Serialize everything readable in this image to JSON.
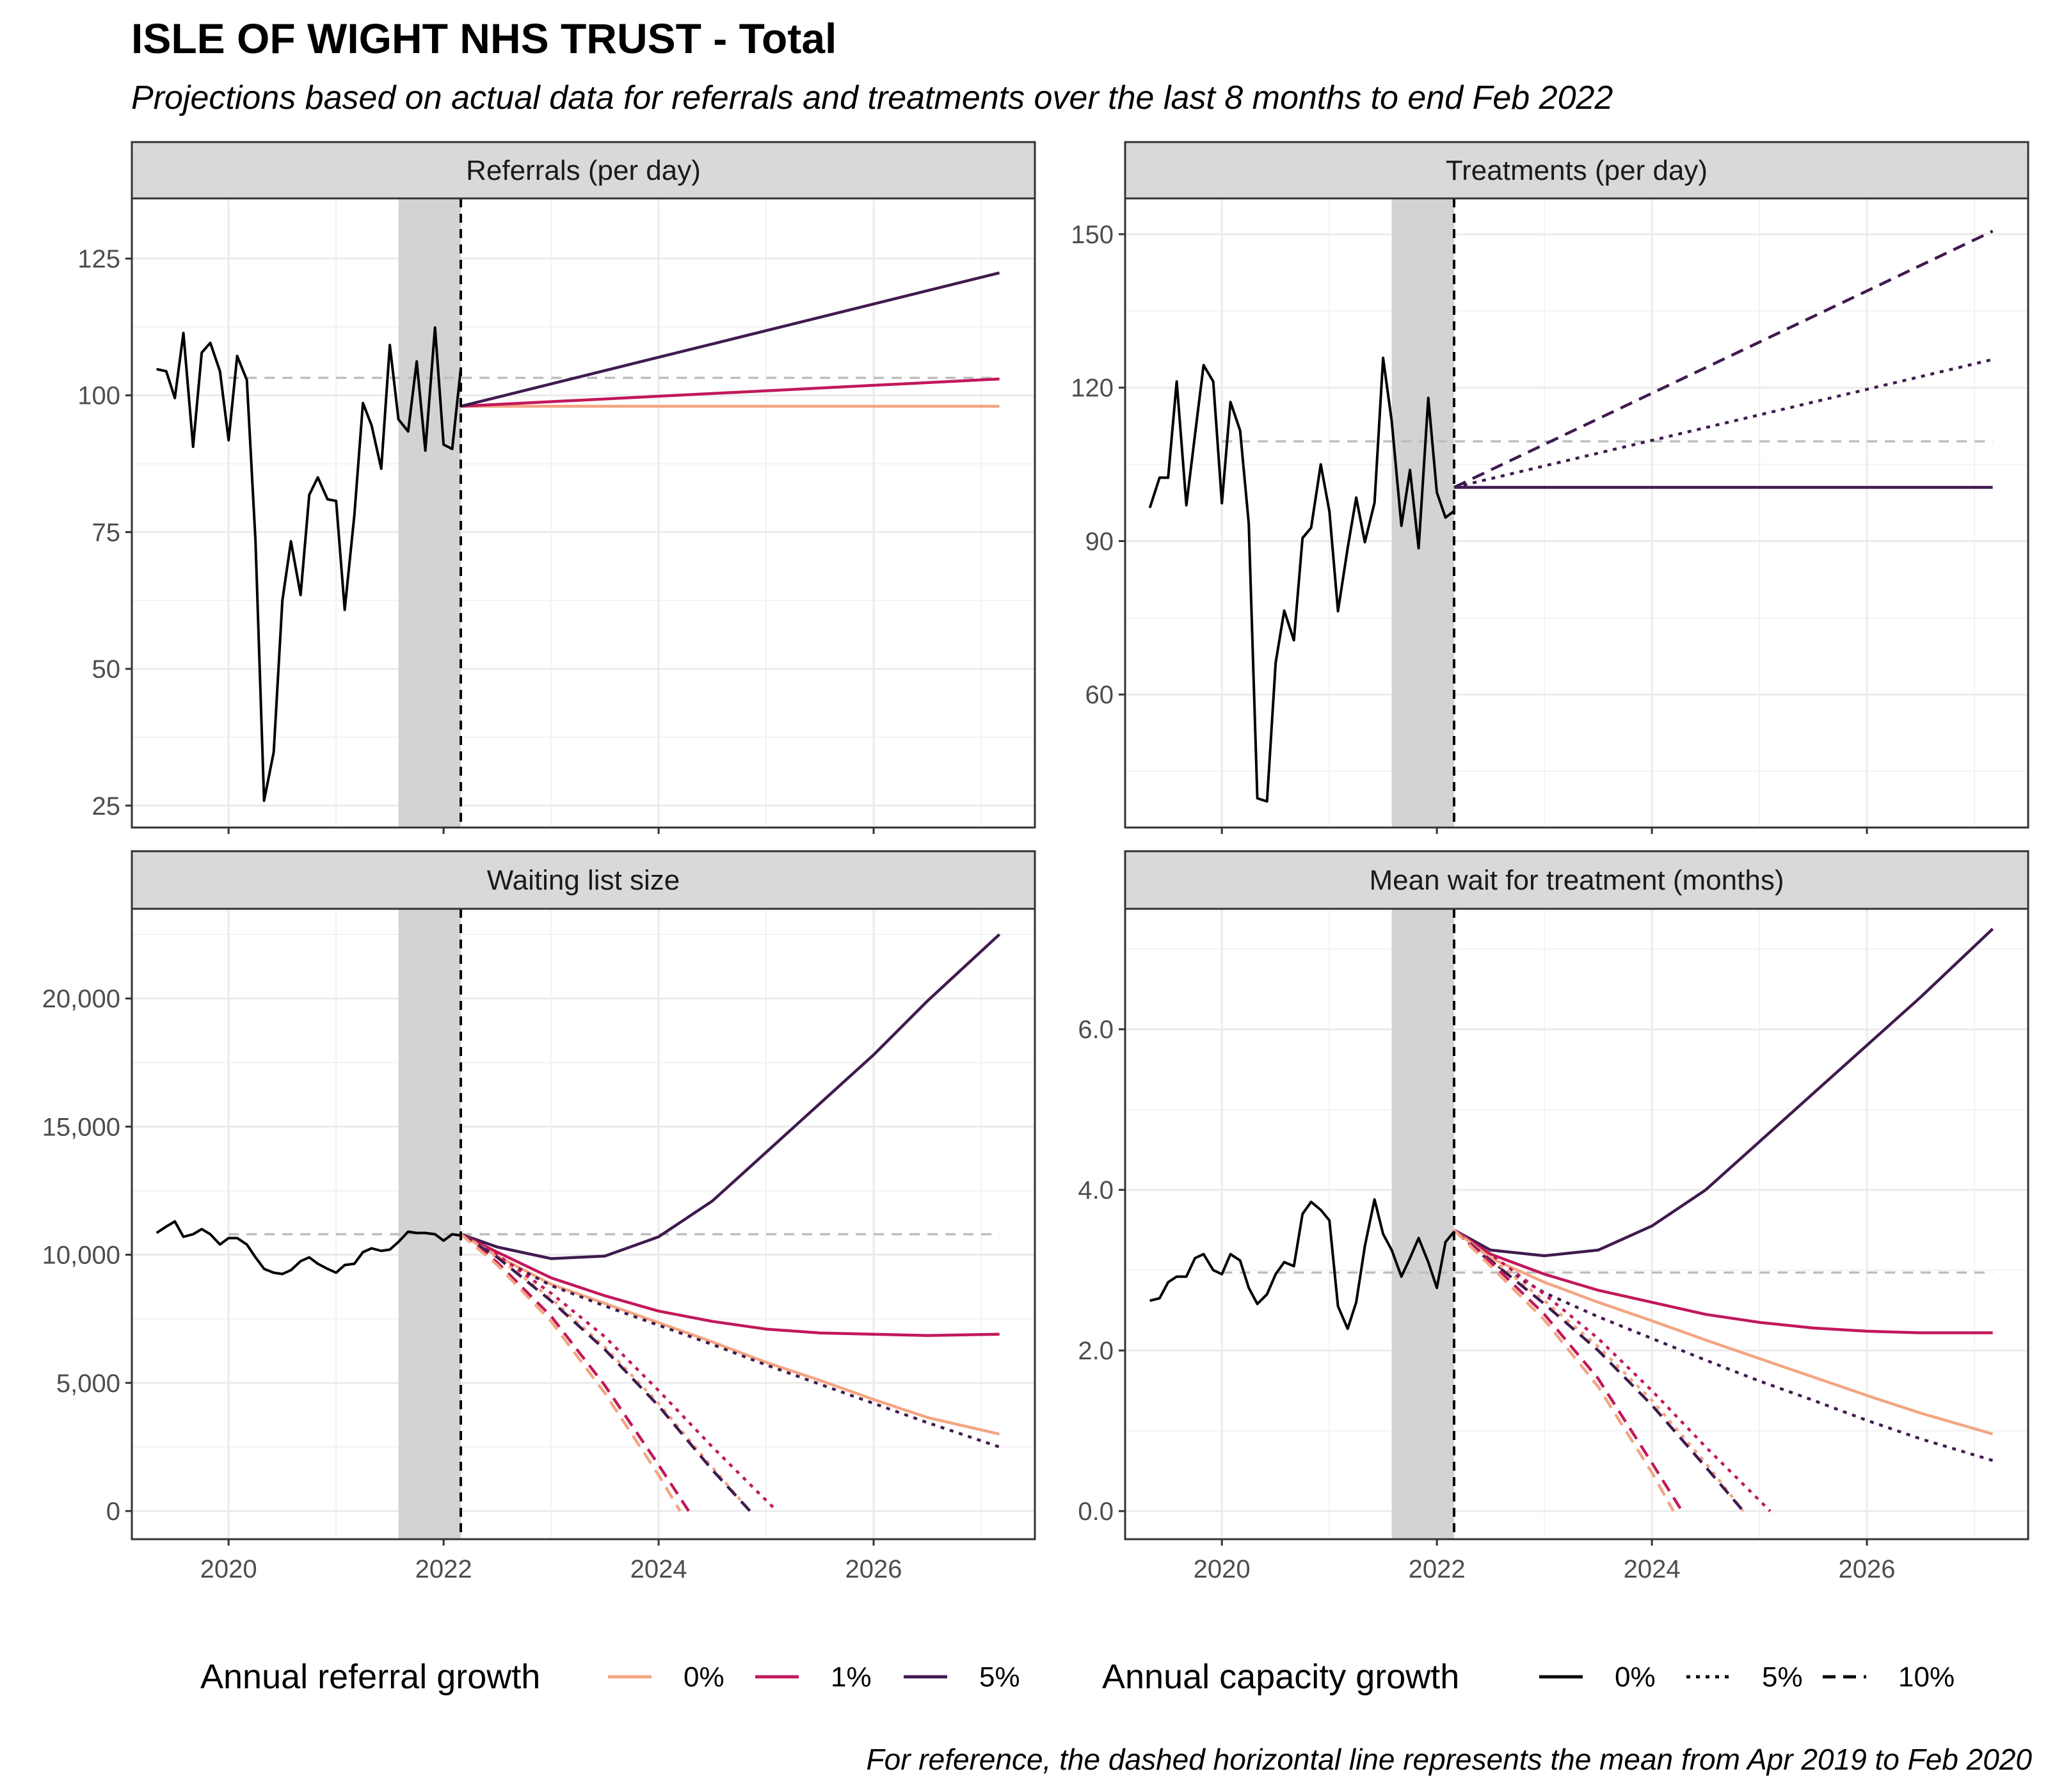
{
  "title": "ISLE OF WIGHT NHS TRUST - Total",
  "subtitle": "Projections based on actual data for referrals and treatments over the last 8 months to end Feb 2022",
  "caption": "For reference, the dashed horizontal line represents the mean from Apr 2019 to Feb 2020",
  "legend": {
    "referral_growth": {
      "title": "Annual referral growth",
      "items": [
        {
          "label": "0%",
          "color": "#F4A582"
        },
        {
          "label": "1%",
          "color": "#C2185B"
        },
        {
          "label": "5%",
          "color": "#3F1A4F"
        }
      ]
    },
    "capacity_growth": {
      "title": "Annual capacity growth",
      "items": [
        {
          "label": "0%",
          "dash": "solid"
        },
        {
          "label": "5%",
          "dash": "dotted"
        },
        {
          "label": "10%",
          "dash": "dashed"
        }
      ]
    }
  },
  "chart_data": [
    {
      "type": "line",
      "panel": "Referrals (per day)",
      "x_ticks": [
        2020,
        2022,
        2024,
        2026
      ],
      "y_ticks": [
        25,
        50,
        75,
        100,
        125
      ],
      "y_tick_labels": [
        "25",
        "50",
        "75",
        "100",
        "125"
      ],
      "xlim": [
        2019.1,
        2027.5
      ],
      "ylim": [
        21,
        136
      ],
      "shaded_period": [
        2021.58,
        2022.16
      ],
      "vline": 2022.16,
      "reference_mean": {
        "value": 103.2,
        "x": [
          2020.0,
          2027.17
        ]
      },
      "actual": {
        "x": [
          2019.33,
          2019.42,
          2019.5,
          2019.58,
          2019.67,
          2019.75,
          2019.83,
          2019.92,
          2020.0,
          2020.08,
          2020.17,
          2020.25,
          2020.33,
          2020.42,
          2020.5,
          2020.58,
          2020.67,
          2020.75,
          2020.83,
          2020.92,
          2021.0,
          2021.08,
          2021.17,
          2021.25,
          2021.33,
          2021.42,
          2021.5,
          2021.58,
          2021.67,
          2021.75,
          2021.83,
          2021.92,
          2022.0,
          2022.08,
          2022.16
        ],
        "y": [
          104.8,
          104.4,
          99.5,
          111.4,
          90.6,
          107.8,
          109.6,
          104.4,
          91.8,
          107.2,
          102.8,
          73.4,
          25.9,
          34.8,
          62.5,
          73.3,
          63.5,
          81.8,
          85.0,
          81.0,
          80.7,
          60.8,
          78.1,
          98.6,
          94.5,
          86.6,
          109.2,
          95.6,
          93.4,
          106.2,
          89.9,
          112.4,
          91.0,
          90.2,
          104.9
        ]
      },
      "projections": [
        {
          "referral_growth": "0%",
          "capacity_growth": "0%",
          "x": [
            2022.16,
            2027.17
          ],
          "y": [
            98.0,
            98.0
          ]
        },
        {
          "referral_growth": "1%",
          "capacity_growth": "0%",
          "x": [
            2022.16,
            2027.17
          ],
          "y": [
            98.0,
            103.0
          ]
        },
        {
          "referral_growth": "5%",
          "capacity_growth": "0%",
          "x": [
            2022.16,
            2027.17
          ],
          "y": [
            98.0,
            122.4
          ]
        }
      ]
    },
    {
      "type": "line",
      "panel": "Treatments (per day)",
      "x_ticks": [
        2020,
        2022,
        2024,
        2026
      ],
      "y_ticks": [
        60,
        90,
        120,
        150
      ],
      "y_tick_labels": [
        "60",
        "90",
        "120",
        "150"
      ],
      "xlim": [
        2019.1,
        2027.5
      ],
      "ylim": [
        34,
        157
      ],
      "shaded_period": [
        2021.58,
        2022.16
      ],
      "vline": 2022.16,
      "reference_mean": {
        "value": 109.5,
        "x": [
          2020.0,
          2027.17
        ]
      },
      "actual": {
        "x": [
          2019.33,
          2019.42,
          2019.5,
          2019.58,
          2019.67,
          2019.75,
          2019.83,
          2019.92,
          2020.0,
          2020.08,
          2020.17,
          2020.25,
          2020.33,
          2020.42,
          2020.5,
          2020.58,
          2020.67,
          2020.75,
          2020.83,
          2020.92,
          2021.0,
          2021.08,
          2021.17,
          2021.25,
          2021.33,
          2021.42,
          2021.5,
          2021.58,
          2021.67,
          2021.75,
          2021.83,
          2021.92,
          2022.0,
          2022.08,
          2022.16
        ],
        "y": [
          96.5,
          102.4,
          102.4,
          121.2,
          97.0,
          110.8,
          124.4,
          121.2,
          97.4,
          117.2,
          111.6,
          93.4,
          39.7,
          39.1,
          66.2,
          76.4,
          70.6,
          90.6,
          92.6,
          105.0,
          95.8,
          76.3,
          88.6,
          98.5,
          89.8,
          97.5,
          125.8,
          113.4,
          93.0,
          103.9,
          88.6,
          118.0,
          99.5,
          94.6,
          95.9
        ]
      },
      "projections": [
        {
          "referral_growth": "5%",
          "capacity_growth": "0%",
          "x": [
            2022.16,
            2027.17
          ],
          "y": [
            100.5,
            100.5
          ]
        },
        {
          "referral_growth": "5%",
          "capacity_growth": "5%",
          "x": [
            2022.16,
            2027.17
          ],
          "y": [
            100.5,
            125.5
          ]
        },
        {
          "referral_growth": "5%",
          "capacity_growth": "10%",
          "x": [
            2022.16,
            2027.17
          ],
          "y": [
            100.5,
            150.6
          ]
        }
      ]
    },
    {
      "type": "line",
      "panel": "Waiting list size",
      "x_ticks": [
        2020,
        2022,
        2024,
        2026
      ],
      "y_ticks": [
        0,
        5000,
        10000,
        15000,
        20000
      ],
      "y_tick_labels": [
        "0",
        "5,000",
        "10,000",
        "15,000",
        "20,000"
      ],
      "xlim": [
        2019.1,
        2027.5
      ],
      "ylim": [
        -1100,
        23500
      ],
      "shaded_period": [
        2021.58,
        2022.16
      ],
      "vline": 2022.16,
      "reference_mean": {
        "value": 10800,
        "x": [
          2020.0,
          2027.17
        ]
      },
      "actual": {
        "x": [
          2019.33,
          2019.42,
          2019.5,
          2019.58,
          2019.67,
          2019.75,
          2019.83,
          2019.92,
          2020.0,
          2020.08,
          2020.17,
          2020.25,
          2020.33,
          2020.42,
          2020.5,
          2020.58,
          2020.67,
          2020.75,
          2020.83,
          2020.92,
          2021.0,
          2021.08,
          2021.17,
          2021.25,
          2021.33,
          2021.42,
          2021.5,
          2021.58,
          2021.67,
          2021.75,
          2021.83,
          2021.92,
          2022.0,
          2022.08,
          2022.16
        ],
        "y": [
          10850,
          11100,
          11300,
          10700,
          10800,
          11000,
          10800,
          10400,
          10650,
          10650,
          10400,
          9900,
          9450,
          9300,
          9250,
          9400,
          9750,
          9900,
          9650,
          9450,
          9300,
          9600,
          9650,
          10100,
          10250,
          10150,
          10200,
          10500,
          10900,
          10850,
          10850,
          10800,
          10550,
          10800,
          10750
        ]
      },
      "projections": [
        {
          "referral_growth": "5%",
          "capacity_growth": "0%",
          "x": [
            2022.16,
            2022.5,
            2023.0,
            2023.5,
            2024.0,
            2024.5,
            2025.0,
            2025.5,
            2026.0,
            2026.5,
            2027.17
          ],
          "y": [
            10800,
            10300,
            9850,
            9950,
            10700,
            12100,
            14000,
            15900,
            17800,
            19900,
            22500
          ]
        },
        {
          "referral_growth": "1%",
          "capacity_growth": "0%",
          "x": [
            2022.16,
            2022.5,
            2023.0,
            2023.5,
            2024.0,
            2024.5,
            2025.0,
            2025.5,
            2026.0,
            2026.5,
            2027.17
          ],
          "y": [
            10800,
            10100,
            9100,
            8400,
            7800,
            7400,
            7100,
            6950,
            6900,
            6850,
            6900
          ]
        },
        {
          "referral_growth": "0%",
          "capacity_growth": "0%",
          "x": [
            2022.16,
            2022.5,
            2023.0,
            2023.5,
            2024.0,
            2024.5,
            2025.0,
            2025.5,
            2026.0,
            2026.5,
            2027.17
          ],
          "y": [
            10800,
            9950,
            8850,
            8100,
            7350,
            6600,
            5800,
            5100,
            4350,
            3650,
            3000
          ]
        },
        {
          "referral_growth": "5%",
          "capacity_growth": "5%",
          "x": [
            2022.16,
            2022.5,
            2023.0,
            2023.5,
            2024.0,
            2024.5,
            2025.0,
            2025.5,
            2026.0,
            2026.5,
            2027.17
          ],
          "y": [
            10800,
            9900,
            8800,
            8000,
            7250,
            6500,
            5700,
            4950,
            4200,
            3450,
            2500
          ]
        },
        {
          "referral_growth": "1%",
          "capacity_growth": "5%",
          "x": [
            2022.16,
            2022.5,
            2023.0,
            2023.5,
            2024.0,
            2024.5,
            2025.1
          ],
          "y": [
            10800,
            10000,
            8500,
            6800,
            4700,
            2500,
            0
          ]
        },
        {
          "referral_growth": "0%",
          "capacity_growth": "5%",
          "x": [
            2022.16,
            2022.5,
            2023.0,
            2023.5,
            2024.0,
            2024.5,
            2024.85
          ],
          "y": [
            10800,
            9900,
            8300,
            6400,
            4200,
            1700,
            0
          ]
        },
        {
          "referral_growth": "5%",
          "capacity_growth": "10%",
          "x": [
            2022.16,
            2022.5,
            2023.0,
            2023.5,
            2024.0,
            2024.5,
            2024.85
          ],
          "y": [
            10800,
            9900,
            8200,
            6300,
            4100,
            1600,
            0
          ]
        },
        {
          "referral_growth": "1%",
          "capacity_growth": "10%",
          "x": [
            2022.16,
            2022.5,
            2023.0,
            2023.5,
            2024.0,
            2024.28
          ],
          "y": [
            10800,
            9700,
            7600,
            4900,
            1800,
            0
          ]
        },
        {
          "referral_growth": "0%",
          "capacity_growth": "10%",
          "x": [
            2022.16,
            2022.5,
            2023.0,
            2023.5,
            2024.0,
            2024.2
          ],
          "y": [
            10800,
            9600,
            7400,
            4600,
            1400,
            0
          ]
        }
      ]
    },
    {
      "type": "line",
      "panel": "Mean wait for treatment (months)",
      "x_ticks": [
        2020,
        2022,
        2024,
        2026
      ],
      "y_ticks": [
        0,
        2,
        4,
        6
      ],
      "y_tick_labels": [
        "0.0",
        "2.0",
        "4.0",
        "6.0"
      ],
      "xlim": [
        2019.1,
        2027.5
      ],
      "ylim": [
        -0.35,
        7.5
      ],
      "shaded_period": [
        2021.58,
        2022.16
      ],
      "vline": 2022.16,
      "reference_mean": {
        "value": 2.97,
        "x": [
          2020.0,
          2027.17
        ]
      },
      "actual": {
        "x": [
          2019.33,
          2019.42,
          2019.5,
          2019.58,
          2019.67,
          2019.75,
          2019.83,
          2019.92,
          2020.0,
          2020.08,
          2020.17,
          2020.25,
          2020.33,
          2020.42,
          2020.5,
          2020.58,
          2020.67,
          2020.75,
          2020.83,
          2020.92,
          2021.0,
          2021.08,
          2021.17,
          2021.25,
          2021.33,
          2021.42,
          2021.5,
          2021.58,
          2021.67,
          2021.75,
          2021.83,
          2021.92,
          2022.0,
          2022.08,
          2022.16
        ],
        "y": [
          2.62,
          2.65,
          2.85,
          2.92,
          2.92,
          3.15,
          3.2,
          3.0,
          2.95,
          3.2,
          3.12,
          2.78,
          2.58,
          2.7,
          2.95,
          3.1,
          3.05,
          3.7,
          3.85,
          3.75,
          3.62,
          2.55,
          2.27,
          2.6,
          3.3,
          3.88,
          3.45,
          3.25,
          2.92,
          3.15,
          3.4,
          3.1,
          2.78,
          3.35,
          3.48
        ]
      },
      "projections": [
        {
          "referral_growth": "5%",
          "capacity_growth": "0%",
          "x": [
            2022.16,
            2022.5,
            2023.0,
            2023.5,
            2024.0,
            2024.5,
            2025.0,
            2025.5,
            2026.0,
            2026.5,
            2027.17
          ],
          "y": [
            3.5,
            3.25,
            3.18,
            3.25,
            3.55,
            4.0,
            4.6,
            5.2,
            5.8,
            6.4,
            7.25
          ]
        },
        {
          "referral_growth": "1%",
          "capacity_growth": "0%",
          "x": [
            2022.16,
            2022.5,
            2023.0,
            2023.5,
            2024.0,
            2024.5,
            2025.0,
            2025.5,
            2026.0,
            2026.5,
            2027.17
          ],
          "y": [
            3.5,
            3.2,
            2.95,
            2.75,
            2.6,
            2.45,
            2.35,
            2.28,
            2.24,
            2.22,
            2.22
          ]
        },
        {
          "referral_growth": "0%",
          "capacity_growth": "0%",
          "x": [
            2022.16,
            2022.5,
            2023.0,
            2023.5,
            2024.0,
            2024.5,
            2025.0,
            2025.5,
            2026.0,
            2026.5,
            2027.17
          ],
          "y": [
            3.5,
            3.15,
            2.85,
            2.6,
            2.37,
            2.13,
            1.9,
            1.67,
            1.44,
            1.22,
            0.96
          ]
        },
        {
          "referral_growth": "5%",
          "capacity_growth": "5%",
          "x": [
            2022.16,
            2022.5,
            2023.0,
            2023.5,
            2024.0,
            2024.5,
            2025.0,
            2025.5,
            2026.0,
            2026.5,
            2027.17
          ],
          "y": [
            3.5,
            3.1,
            2.72,
            2.42,
            2.15,
            1.88,
            1.62,
            1.38,
            1.13,
            0.9,
            0.63
          ]
        },
        {
          "referral_growth": "1%",
          "capacity_growth": "5%",
          "x": [
            2022.16,
            2022.5,
            2023.0,
            2023.5,
            2024.0,
            2024.5,
            2025.1
          ],
          "y": [
            3.5,
            3.2,
            2.7,
            2.15,
            1.5,
            0.8,
            0.0
          ]
        },
        {
          "referral_growth": "0%",
          "capacity_growth": "5%",
          "x": [
            2022.16,
            2022.5,
            2023.0,
            2023.5,
            2024.0,
            2024.5,
            2024.85
          ],
          "y": [
            3.5,
            3.15,
            2.62,
            2.05,
            1.38,
            0.6,
            0.0
          ]
        },
        {
          "referral_growth": "5%",
          "capacity_growth": "10%",
          "x": [
            2022.16,
            2022.5,
            2023.0,
            2023.5,
            2024.0,
            2024.5,
            2024.85
          ],
          "y": [
            3.5,
            3.12,
            2.58,
            2.0,
            1.32,
            0.55,
            0.0
          ]
        },
        {
          "referral_growth": "1%",
          "capacity_growth": "10%",
          "x": [
            2022.16,
            2022.5,
            2023.0,
            2023.5,
            2024.0,
            2024.28
          ],
          "y": [
            3.5,
            3.1,
            2.45,
            1.65,
            0.6,
            0.0
          ]
        },
        {
          "referral_growth": "0%",
          "capacity_growth": "10%",
          "x": [
            2022.16,
            2022.5,
            2023.0,
            2023.5,
            2024.0,
            2024.2
          ],
          "y": [
            3.5,
            3.05,
            2.38,
            1.55,
            0.48,
            0.0
          ]
        }
      ]
    }
  ]
}
